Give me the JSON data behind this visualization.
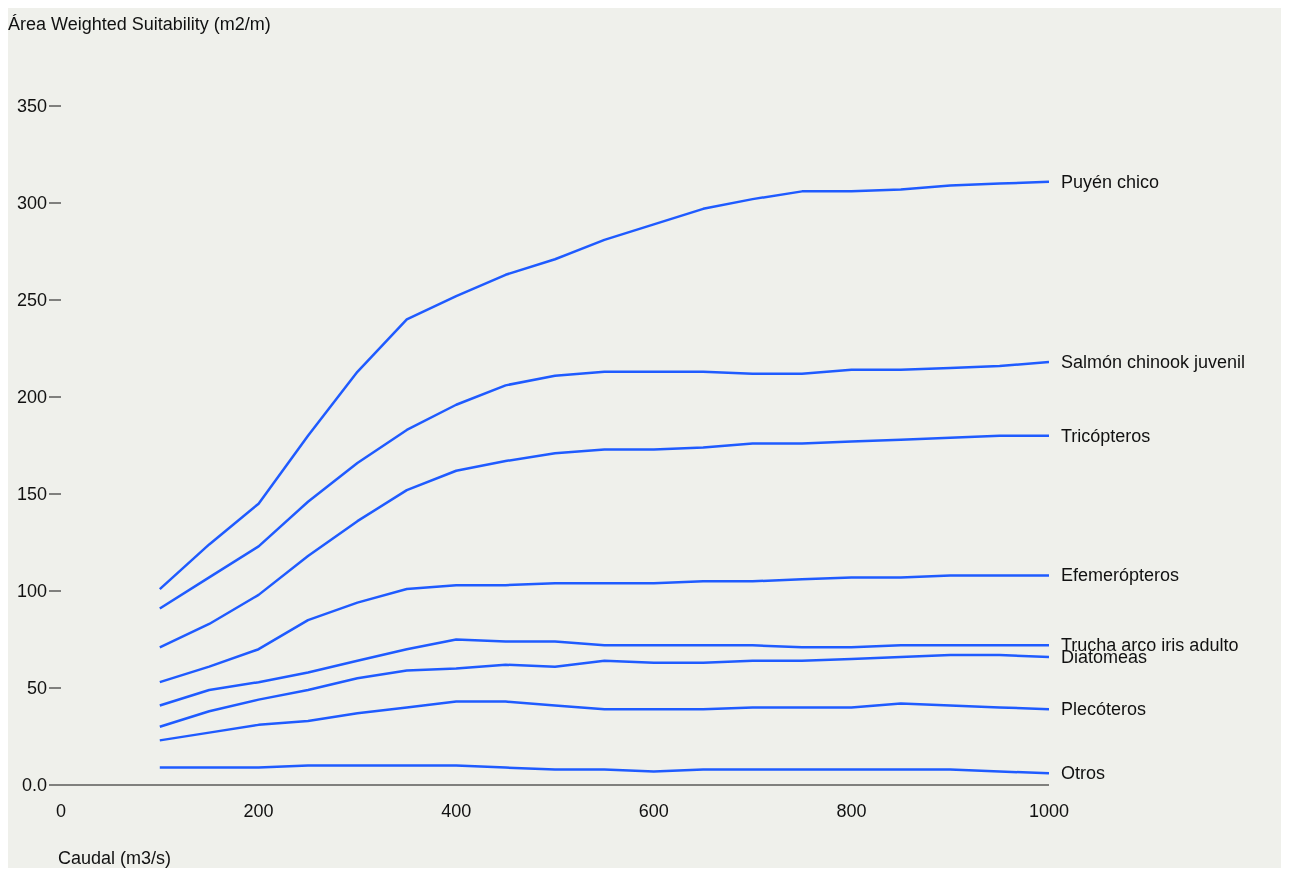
{
  "chart_data": {
    "type": "line",
    "ylabel": "Área Weighted Suitability (m2/m)",
    "xlabel": "Caudal (m3/s)",
    "x": [
      100,
      150,
      200,
      250,
      300,
      350,
      400,
      450,
      500,
      550,
      600,
      650,
      700,
      750,
      800,
      850,
      900,
      950,
      1000
    ],
    "xlim": [
      0,
      1000
    ],
    "xticks": [
      0,
      200,
      400,
      600,
      800,
      1000
    ],
    "ylim": [
      0,
      350
    ],
    "yticks": [
      {
        "value": 0,
        "label": "0.0"
      },
      50,
      100,
      150,
      200,
      250,
      300,
      350
    ],
    "series": [
      {
        "name": "Puyén chico",
        "color": "#1f5bff",
        "values": [
          101,
          124,
          145,
          180,
          213,
          240,
          252,
          263,
          271,
          281,
          289,
          297,
          302,
          306,
          306,
          307,
          309,
          310,
          311
        ]
      },
      {
        "name": "Salmón chinook juvenil",
        "color": "#1f5bff",
        "values": [
          91,
          107,
          123,
          146,
          166,
          183,
          196,
          206,
          211,
          213,
          213,
          213,
          212,
          212,
          214,
          214,
          215,
          216,
          218
        ]
      },
      {
        "name": "Tricópteros",
        "color": "#1f5bff",
        "values": [
          71,
          83,
          98,
          118,
          136,
          152,
          162,
          167,
          171,
          173,
          173,
          174,
          176,
          176,
          177,
          178,
          179,
          180,
          180
        ]
      },
      {
        "name": "Efemerópteros",
        "color": "#1f5bff",
        "values": [
          53,
          61,
          70,
          85,
          94,
          101,
          103,
          103,
          104,
          104,
          104,
          105,
          105,
          106,
          107,
          107,
          108,
          108,
          108
        ]
      },
      {
        "name": "Trucha arco iris adulto",
        "color": "#1f5bff",
        "values": [
          41,
          49,
          53,
          58,
          64,
          70,
          75,
          74,
          74,
          72,
          72,
          72,
          72,
          71,
          71,
          72,
          72,
          72,
          72
        ]
      },
      {
        "name": "Diatomeas",
        "color": "#1f5bff",
        "values": [
          30,
          38,
          44,
          49,
          55,
          59,
          60,
          62,
          61,
          64,
          63,
          63,
          64,
          64,
          65,
          66,
          67,
          67,
          66
        ]
      },
      {
        "name": "Plecóteros",
        "color": "#1f5bff",
        "values": [
          23,
          27,
          31,
          33,
          37,
          40,
          43,
          43,
          41,
          39,
          39,
          39,
          40,
          40,
          40,
          42,
          41,
          40,
          39
        ]
      },
      {
        "name": "Otros",
        "color": "#1f5bff",
        "values": [
          9,
          9,
          9,
          10,
          10,
          10,
          10,
          9,
          8,
          8,
          7,
          8,
          8,
          8,
          8,
          8,
          8,
          7,
          6
        ]
      }
    ]
  }
}
